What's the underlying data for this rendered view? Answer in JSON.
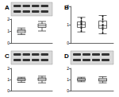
{
  "chart_data": [
    {
      "type": "boxplot",
      "title": "A",
      "categories": [
        null,
        null
      ],
      "series": [
        {
          "color": "#000000",
          "values": [
            [
              0.7,
              0.85,
              1.0,
              1.1,
              1.25
            ],
            [
              1.0,
              1.3,
              1.45,
              1.6,
              1.8
            ]
          ]
        }
      ],
      "ylim": [
        0,
        2
      ],
      "yticks": [
        0,
        1,
        2
      ]
    },
    {
      "type": "boxplot",
      "title": "B",
      "categories": [
        null,
        null
      ],
      "series": [
        {
          "color": "#000000",
          "values": [
            [
              0.6,
              0.85,
              1.0,
              1.15,
              1.4
            ],
            [
              0.5,
              0.8,
              0.95,
              1.2,
              1.5
            ]
          ],
          "points": [
            [
              0.65,
              0.8,
              0.9,
              1.0,
              1.05,
              1.1,
              1.2,
              1.35
            ],
            [
              0.55,
              0.75,
              0.85,
              0.95,
              1.0,
              1.15,
              1.3,
              1.45
            ]
          ]
        }
      ],
      "ylim": [
        0,
        2
      ],
      "yticks": [
        0,
        1,
        2
      ]
    },
    {
      "type": "boxplot",
      "title": "C",
      "categories": [
        null,
        null
      ],
      "series": [
        {
          "color": "#000000",
          "values": [
            [
              0.75,
              0.9,
              1.0,
              1.1,
              1.2
            ],
            [
              0.7,
              0.9,
              1.05,
              1.15,
              1.3
            ]
          ]
        }
      ],
      "ylim": [
        0,
        2
      ],
      "yticks": [
        0,
        1,
        2
      ]
    },
    {
      "type": "boxplot",
      "title": "D",
      "categories": [
        null,
        null
      ],
      "series": [
        {
          "color": "#000000",
          "values": [
            [
              0.8,
              0.9,
              1.0,
              1.1,
              1.2
            ],
            [
              0.7,
              0.85,
              0.95,
              1.1,
              1.25
            ]
          ]
        }
      ],
      "ylim": [
        0,
        2
      ],
      "yticks": [
        0,
        1,
        2
      ]
    }
  ]
}
